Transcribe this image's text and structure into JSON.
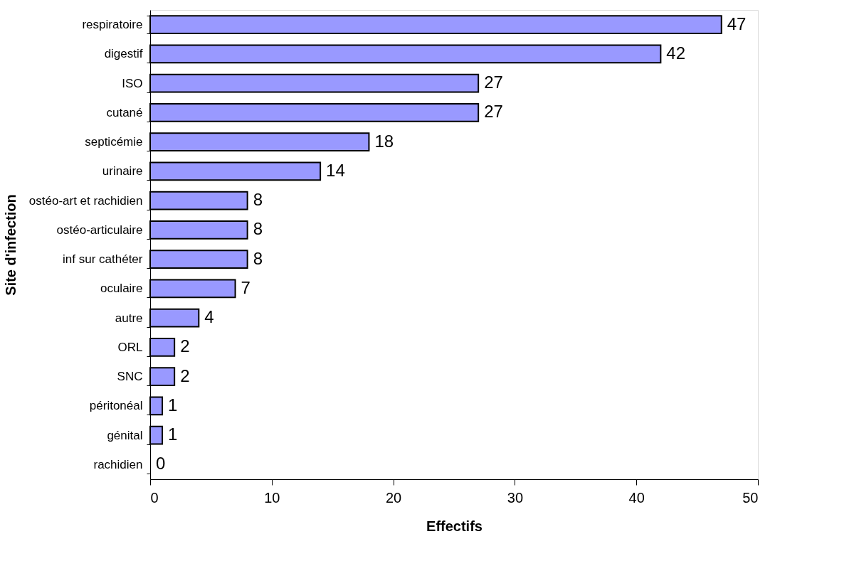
{
  "chart_data": {
    "type": "bar",
    "orientation": "horizontal",
    "xlabel": "Effectifs",
    "ylabel": "Site d'infection",
    "categories": [
      "respiratoire",
      "digestif",
      "ISO",
      "cutané",
      "septicémie",
      "urinaire",
      "ostéo-art et rachidien",
      "ostéo-articulaire",
      "inf sur cathéter",
      "oculaire",
      "autre",
      "ORL",
      "SNC",
      "péritonéal",
      "génital",
      "rachidien"
    ],
    "values": [
      47,
      42,
      27,
      27,
      18,
      14,
      8,
      8,
      8,
      7,
      4,
      2,
      2,
      1,
      1,
      0
    ],
    "color": "#9999ff",
    "xlim": [
      0,
      50
    ],
    "xticks": [
      0,
      10,
      20,
      30,
      40,
      50
    ],
    "grid": false,
    "data_labels": true
  }
}
